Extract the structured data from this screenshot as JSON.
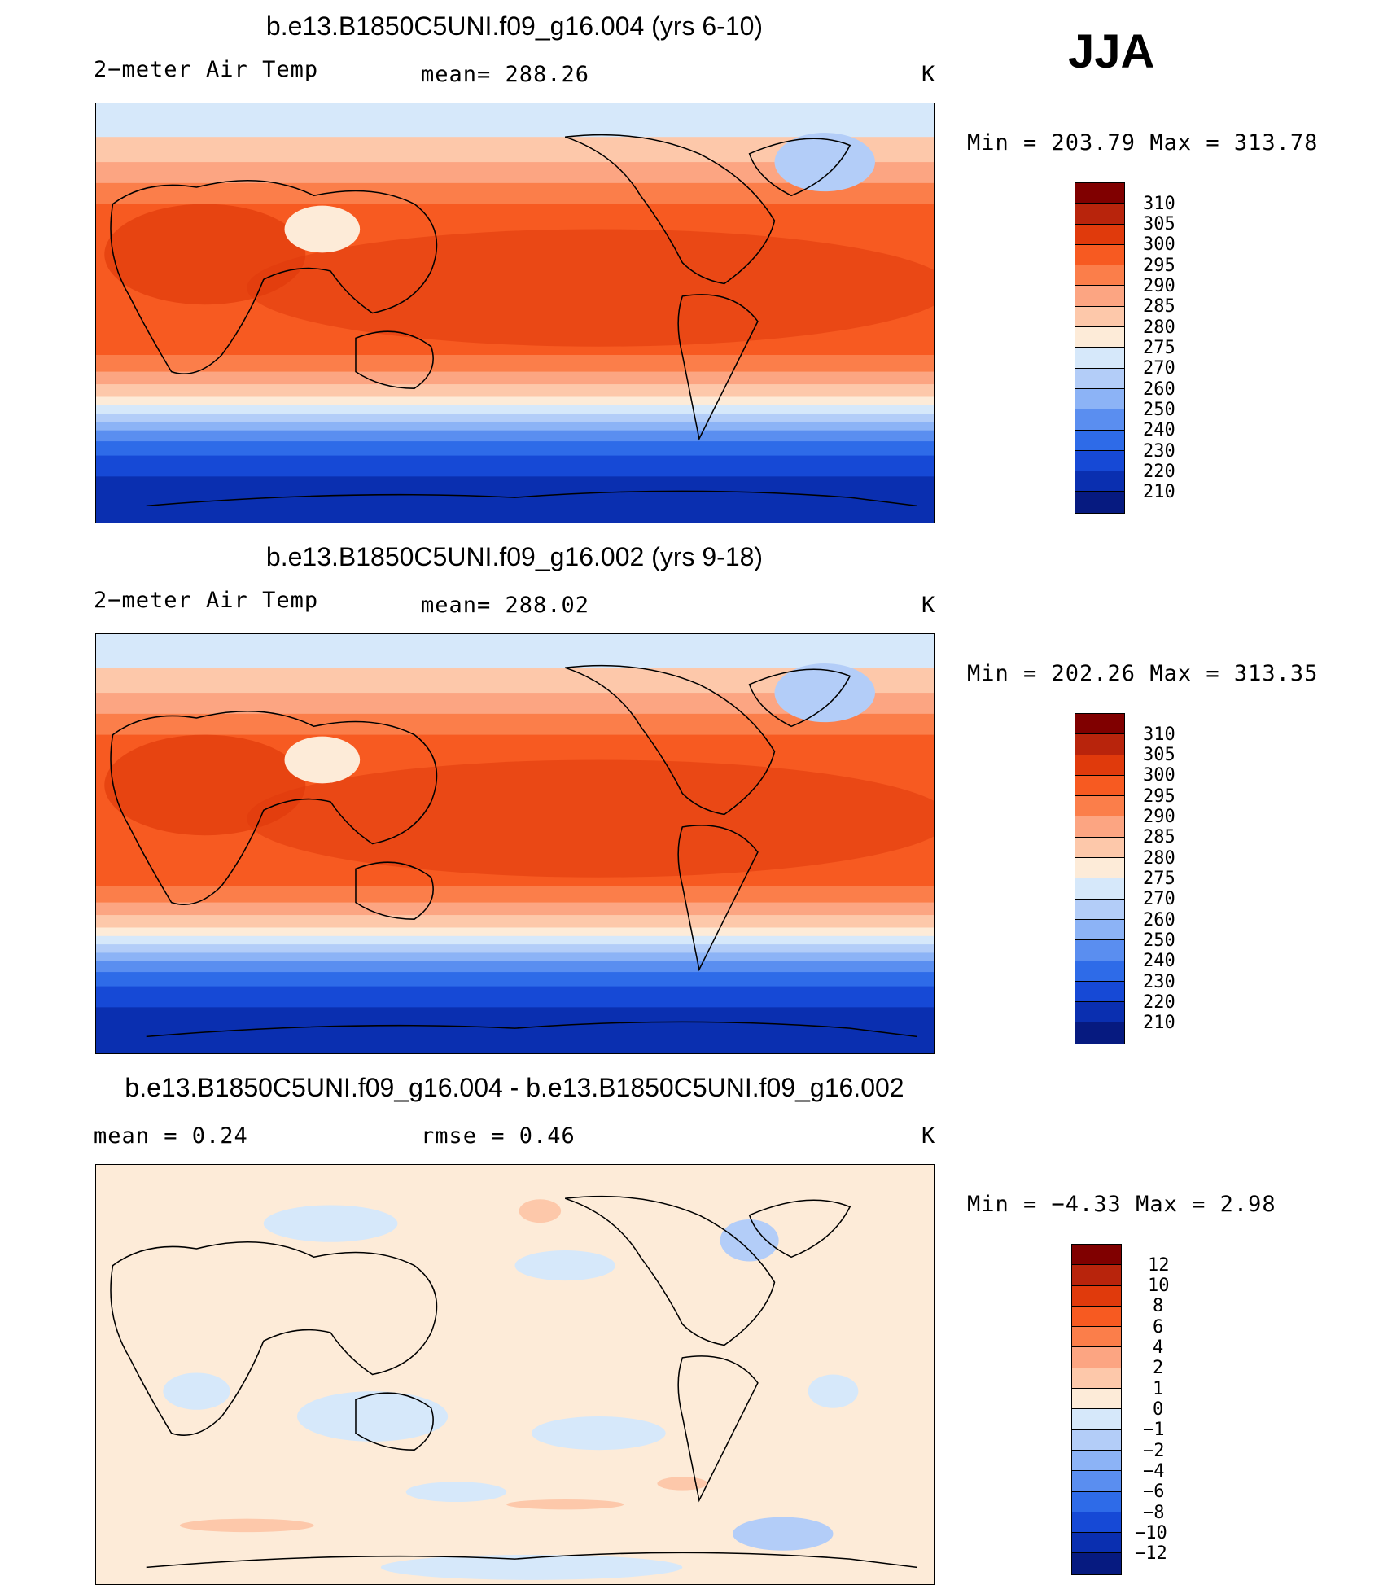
{
  "season": "JJA",
  "panels": [
    {
      "title": "b.e13.B1850C5UNI.f09_g16.004 (yrs 6-10)",
      "variable": "2−meter Air Temp",
      "stat": "mean=  288.26",
      "units": "K",
      "minmax": "Min  =  203.79  Max  =  313.78",
      "colorbar": {
        "colors": [
          "#800000",
          "#b8240c",
          "#e03a0c",
          "#f75a21",
          "#fb7e4a",
          "#fca582",
          "#fdc8aa",
          "#fdebd8",
          "#d6e8fa",
          "#b3cdf8",
          "#8cb3f6",
          "#5a8ef0",
          "#2e6be8",
          "#1649d6",
          "#0a2fb0",
          "#061a80"
        ],
        "labels": [
          "310",
          "305",
          "300",
          "295",
          "290",
          "285",
          "280",
          "275",
          "270",
          "260",
          "250",
          "240",
          "230",
          "220",
          "210"
        ]
      }
    },
    {
      "title": "b.e13.B1850C5UNI.f09_g16.002 (yrs 9-18)",
      "variable": "2−meter Air Temp",
      "stat": "mean=  288.02",
      "units": "K",
      "minmax": "Min  =  202.26  Max  =  313.35",
      "colorbar": {
        "colors": [
          "#800000",
          "#b8240c",
          "#e03a0c",
          "#f75a21",
          "#fb7e4a",
          "#fca582",
          "#fdc8aa",
          "#fdebd8",
          "#d6e8fa",
          "#b3cdf8",
          "#8cb3f6",
          "#5a8ef0",
          "#2e6be8",
          "#1649d6",
          "#0a2fb0",
          "#061a80"
        ],
        "labels": [
          "310",
          "305",
          "300",
          "295",
          "290",
          "285",
          "280",
          "275",
          "270",
          "260",
          "250",
          "240",
          "230",
          "220",
          "210"
        ]
      }
    },
    {
      "title": "b.e13.B1850C5UNI.f09_g16.004 - b.e13.B1850C5UNI.f09_g16.002",
      "stat_mean": "mean  =     0.24",
      "stat_rmse": "rmse  =     0.46",
      "units": "K",
      "minmax": "Min  =    −4.33  Max  =     2.98",
      "colorbar": {
        "colors": [
          "#800000",
          "#b8240c",
          "#e03a0c",
          "#f75a21",
          "#fb7e4a",
          "#fca582",
          "#fdc8aa",
          "#fdebd8",
          "#d6e8fa",
          "#b3cdf8",
          "#8cb3f6",
          "#5a8ef0",
          "#2e6be8",
          "#1649d6",
          "#0a2fb0",
          "#061a80"
        ],
        "labels": [
          "12",
          "10",
          "8",
          "6",
          "4",
          "2",
          "1",
          "0",
          "−1",
          "−2",
          "−4",
          "−6",
          "−8",
          "−10",
          "−12"
        ]
      }
    }
  ]
}
